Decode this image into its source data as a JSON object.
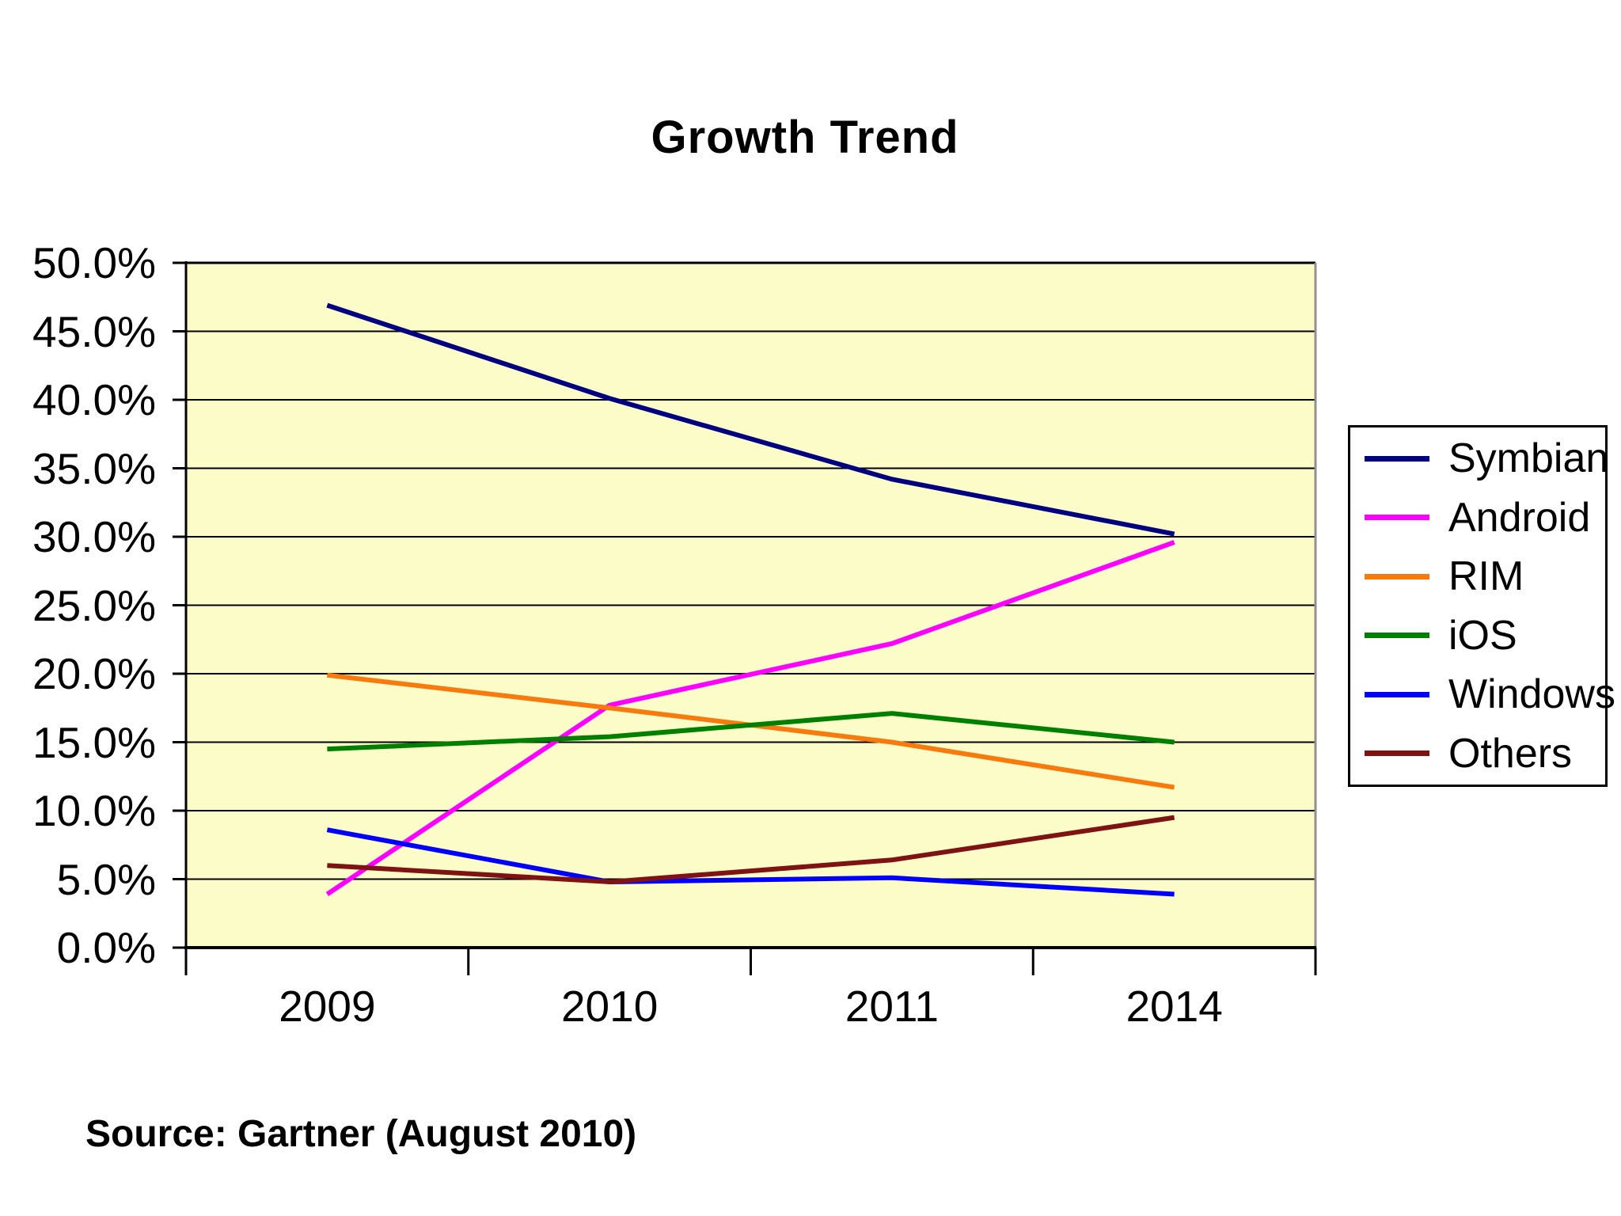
{
  "chart": {
    "source_note": "Source: Gartner (August 2010)",
    "plot_bg_color": "#FCFCC9",
    "gridline_color": "#000000",
    "axis_color": "#000000",
    "plot_border_right_color": "#909090",
    "legend_border_color": "#000000"
  },
  "chart_data": {
    "type": "line",
    "title": "Growth Trend",
    "categories": [
      "2009",
      "2010",
      "2011",
      "2014"
    ],
    "series": [
      {
        "name": "Symbian",
        "color": "#000080",
        "values": [
          46.9,
          40.1,
          34.2,
          30.2
        ]
      },
      {
        "name": "Android",
        "color": "#FF00FF",
        "values": [
          3.9,
          17.7,
          22.2,
          29.6
        ]
      },
      {
        "name": "RIM",
        "color": "#F87A0D",
        "values": [
          19.9,
          17.5,
          15.0,
          11.7
        ]
      },
      {
        "name": "iOS",
        "color": "#008000",
        "values": [
          14.5,
          15.4,
          17.1,
          15.0
        ]
      },
      {
        "name": "Windows",
        "color": "#0000FF",
        "values": [
          8.6,
          4.8,
          5.1,
          3.9
        ]
      },
      {
        "name": "Others",
        "color": "#7F1212",
        "values": [
          6.0,
          4.8,
          6.4,
          9.5
        ]
      }
    ],
    "xlabel": "",
    "ylabel": "",
    "ylim": [
      0,
      50
    ],
    "ytick_step": 5,
    "ytick_labels": [
      "0.0%",
      "5.0%",
      "10.0%",
      "15.0%",
      "20.0%",
      "25.0%",
      "30.0%",
      "35.0%",
      "40.0%",
      "45.0%",
      "50.0%"
    ],
    "grid": true,
    "legend_position": "right"
  }
}
